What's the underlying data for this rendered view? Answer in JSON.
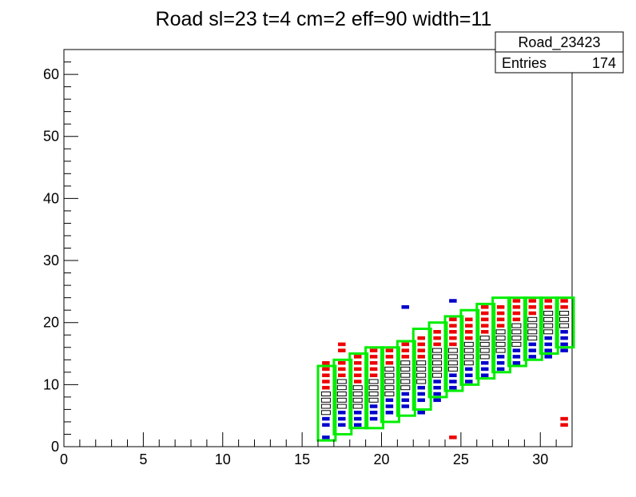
{
  "chart_data": {
    "type": "heatmap",
    "title": "Road sl=23 t=4 cm=2 eff=90 width=11",
    "xlabel": "",
    "ylabel": "",
    "xlim": [
      0,
      32
    ],
    "ylim": [
      0,
      64
    ],
    "x_ticks": [
      "0",
      "5",
      "10",
      "15",
      "20",
      "25",
      "30"
    ],
    "y_ticks": [
      "0",
      "10",
      "20",
      "30",
      "40",
      "50",
      "60"
    ],
    "stats_box": {
      "name": "Road_23423",
      "entries_label": "Entries",
      "entries_value": "174"
    },
    "colors": {
      "road_outline": "#00ee00",
      "upper_edge": "#ee0000",
      "lower_edge": "#0000cc",
      "core": "#000000",
      "axes": "#000000"
    },
    "road_windows": [
      {
        "x": 16,
        "y_low": 1,
        "y_high": 13
      },
      {
        "x": 17,
        "y_low": 2,
        "y_high": 14
      },
      {
        "x": 18,
        "y_low": 3,
        "y_high": 15
      },
      {
        "x": 19,
        "y_low": 3,
        "y_high": 16
      },
      {
        "x": 20,
        "y_low": 4,
        "y_high": 16
      },
      {
        "x": 21,
        "y_low": 5,
        "y_high": 17
      },
      {
        "x": 22,
        "y_low": 6,
        "y_high": 19
      },
      {
        "x": 23,
        "y_low": 8,
        "y_high": 20
      },
      {
        "x": 24,
        "y_low": 9,
        "y_high": 21
      },
      {
        "x": 25,
        "y_low": 10,
        "y_high": 22
      },
      {
        "x": 26,
        "y_low": 11,
        "y_high": 23
      },
      {
        "x": 27,
        "y_low": 12,
        "y_high": 24
      },
      {
        "x": 28,
        "y_low": 13,
        "y_high": 24
      },
      {
        "x": 29,
        "y_low": 14,
        "y_high": 24
      },
      {
        "x": 30,
        "y_low": 15,
        "y_high": 24
      },
      {
        "x": 31,
        "y_low": 16,
        "y_high": 24
      }
    ],
    "columns": [
      {
        "x": 16,
        "blue": [
          1,
          3,
          4
        ],
        "black": [
          5,
          6,
          7,
          8
        ],
        "red": [
          9,
          10,
          11,
          12,
          13
        ]
      },
      {
        "x": 17,
        "blue": [
          3,
          4,
          5
        ],
        "black": [
          6,
          7,
          8,
          9,
          10
        ],
        "red": [
          11,
          12,
          13,
          15,
          16
        ]
      },
      {
        "x": 18,
        "blue": [
          3,
          4,
          5
        ],
        "black": [
          6,
          7,
          8,
          9
        ],
        "red": [
          10,
          11,
          12,
          13,
          14
        ]
      },
      {
        "x": 19,
        "blue": [
          4,
          5,
          6
        ],
        "black": [
          7,
          8,
          9,
          10
        ],
        "red": [
          11,
          12,
          13,
          14,
          15
        ]
      },
      {
        "x": 20,
        "blue": [
          5,
          6,
          7
        ],
        "black": [
          8,
          9,
          10,
          11,
          12
        ],
        "red": [
          13,
          14,
          15
        ]
      },
      {
        "x": 21,
        "blue": [
          6,
          7,
          8,
          22
        ],
        "black": [
          9,
          10,
          11,
          12,
          13
        ],
        "red": [
          14,
          15,
          16
        ]
      },
      {
        "x": 22,
        "blue": [
          5,
          7,
          8,
          9
        ],
        "black": [
          10,
          11,
          12,
          13
        ],
        "red": [
          14,
          15,
          16,
          17
        ]
      },
      {
        "x": 23,
        "blue": [
          7,
          8,
          9,
          10
        ],
        "black": [
          11,
          12,
          13,
          14,
          15
        ],
        "red": [
          16,
          17,
          18
        ]
      },
      {
        "x": 24,
        "blue": [
          9,
          10,
          11,
          23
        ],
        "black": [
          12,
          13,
          14,
          15
        ],
        "red": [
          16,
          17,
          18,
          19,
          20,
          1
        ]
      },
      {
        "x": 25,
        "blue": [
          10,
          11,
          12
        ],
        "black": [
          13,
          14,
          15,
          16
        ],
        "red": [
          17,
          18,
          19,
          20
        ]
      },
      {
        "x": 26,
        "blue": [
          11,
          12,
          13
        ],
        "black": [
          14,
          15,
          16,
          17
        ],
        "red": [
          18,
          19,
          20,
          21,
          22
        ]
      },
      {
        "x": 27,
        "blue": [
          12,
          13,
          14
        ],
        "black": [
          15,
          16,
          17,
          18
        ],
        "red": [
          19,
          20,
          21,
          22
        ]
      },
      {
        "x": 28,
        "blue": [
          13,
          14,
          15
        ],
        "black": [
          16,
          17,
          18,
          19
        ],
        "red": [
          20,
          21,
          22,
          23
        ]
      },
      {
        "x": 29,
        "blue": [
          14,
          15,
          16
        ],
        "black": [
          17,
          18,
          19,
          20
        ],
        "red": [
          21,
          22,
          23
        ]
      },
      {
        "x": 30,
        "blue": [
          14,
          15,
          16,
          17
        ],
        "black": [
          18,
          19,
          20,
          21
        ],
        "red": [
          22,
          23
        ]
      },
      {
        "x": 31,
        "blue": [
          15,
          16,
          17,
          18
        ],
        "black": [
          19,
          20,
          21
        ],
        "red": [
          22,
          23,
          3,
          4
        ]
      }
    ]
  }
}
